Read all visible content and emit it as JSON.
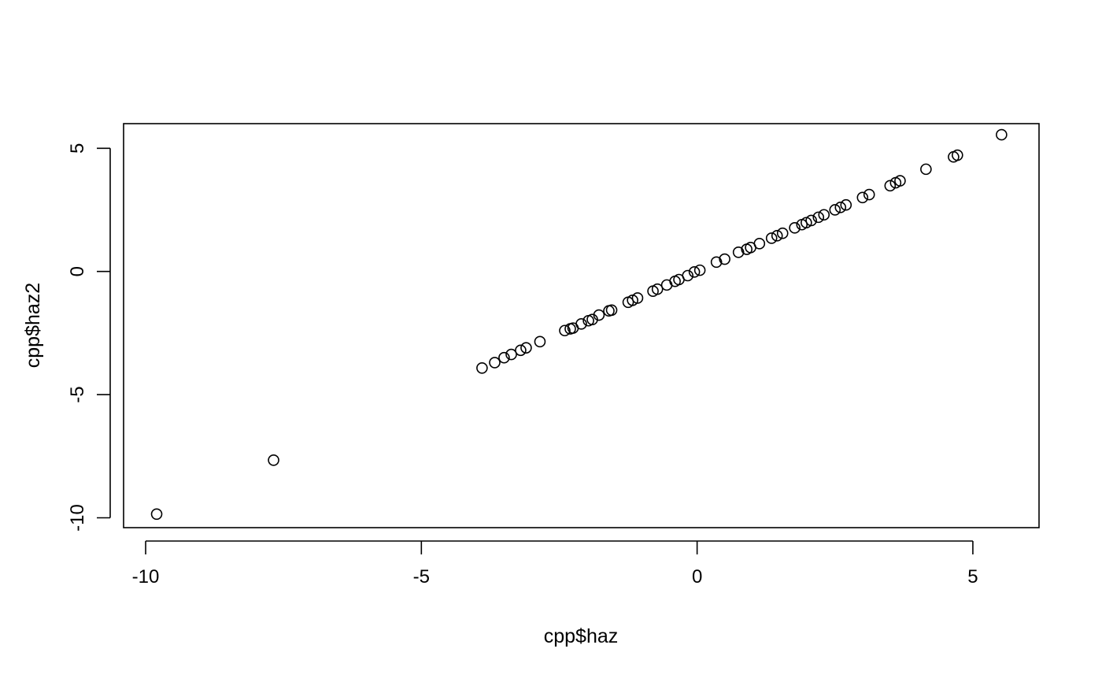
{
  "chart_data": {
    "type": "scatter",
    "title": "",
    "xlabel": "cpp$haz",
    "ylabel": "cpp$haz2",
    "xlim": [
      -10.4,
      6.2
    ],
    "ylim": [
      -10.4,
      6.0
    ],
    "x_ticks": [
      -10,
      -5,
      0,
      5
    ],
    "x_tick_labels": [
      "-10",
      "-5",
      "0",
      "5"
    ],
    "y_ticks": [
      -10,
      -5,
      0,
      5
    ],
    "y_tick_labels": [
      "-10",
      "-5",
      "0",
      "5"
    ],
    "grid": false,
    "marker": "open-circle",
    "marker_color": "#000000",
    "points": [
      {
        "x": -9.8,
        "y": -9.85
      },
      {
        "x": -7.68,
        "y": -7.66
      },
      {
        "x": -3.9,
        "y": -3.92
      },
      {
        "x": -3.67,
        "y": -3.7
      },
      {
        "x": -3.5,
        "y": -3.5
      },
      {
        "x": -3.37,
        "y": -3.37
      },
      {
        "x": -3.2,
        "y": -3.2
      },
      {
        "x": -3.1,
        "y": -3.1
      },
      {
        "x": -2.85,
        "y": -2.85
      },
      {
        "x": -2.4,
        "y": -2.4
      },
      {
        "x": -2.3,
        "y": -2.33
      },
      {
        "x": -2.25,
        "y": -2.3
      },
      {
        "x": -2.1,
        "y": -2.13
      },
      {
        "x": -1.97,
        "y": -2.0
      },
      {
        "x": -1.9,
        "y": -1.95
      },
      {
        "x": -1.78,
        "y": -1.77
      },
      {
        "x": -1.6,
        "y": -1.6
      },
      {
        "x": -1.55,
        "y": -1.57
      },
      {
        "x": -1.25,
        "y": -1.25
      },
      {
        "x": -1.17,
        "y": -1.17
      },
      {
        "x": -1.08,
        "y": -1.08
      },
      {
        "x": -0.8,
        "y": -0.8
      },
      {
        "x": -0.72,
        "y": -0.72
      },
      {
        "x": -0.55,
        "y": -0.55
      },
      {
        "x": -0.4,
        "y": -0.4
      },
      {
        "x": -0.33,
        "y": -0.33
      },
      {
        "x": -0.17,
        "y": -0.17
      },
      {
        "x": -0.05,
        "y": -0.02
      },
      {
        "x": 0.05,
        "y": 0.05
      },
      {
        "x": 0.35,
        "y": 0.38
      },
      {
        "x": 0.5,
        "y": 0.5
      },
      {
        "x": 0.75,
        "y": 0.78
      },
      {
        "x": 0.9,
        "y": 0.9
      },
      {
        "x": 0.97,
        "y": 0.97
      },
      {
        "x": 1.13,
        "y": 1.13
      },
      {
        "x": 1.35,
        "y": 1.35
      },
      {
        "x": 1.45,
        "y": 1.45
      },
      {
        "x": 1.55,
        "y": 1.55
      },
      {
        "x": 1.77,
        "y": 1.77
      },
      {
        "x": 1.9,
        "y": 1.9
      },
      {
        "x": 1.98,
        "y": 1.98
      },
      {
        "x": 2.07,
        "y": 2.07
      },
      {
        "x": 2.2,
        "y": 2.2
      },
      {
        "x": 2.3,
        "y": 2.3
      },
      {
        "x": 2.5,
        "y": 2.5
      },
      {
        "x": 2.6,
        "y": 2.6
      },
      {
        "x": 2.7,
        "y": 2.7
      },
      {
        "x": 3.0,
        "y": 3.0
      },
      {
        "x": 3.12,
        "y": 3.12
      },
      {
        "x": 3.5,
        "y": 3.48
      },
      {
        "x": 3.6,
        "y": 3.6
      },
      {
        "x": 3.68,
        "y": 3.68
      },
      {
        "x": 4.15,
        "y": 4.15
      },
      {
        "x": 4.65,
        "y": 4.65
      },
      {
        "x": 4.72,
        "y": 4.72
      },
      {
        "x": 5.52,
        "y": 5.55
      }
    ]
  }
}
